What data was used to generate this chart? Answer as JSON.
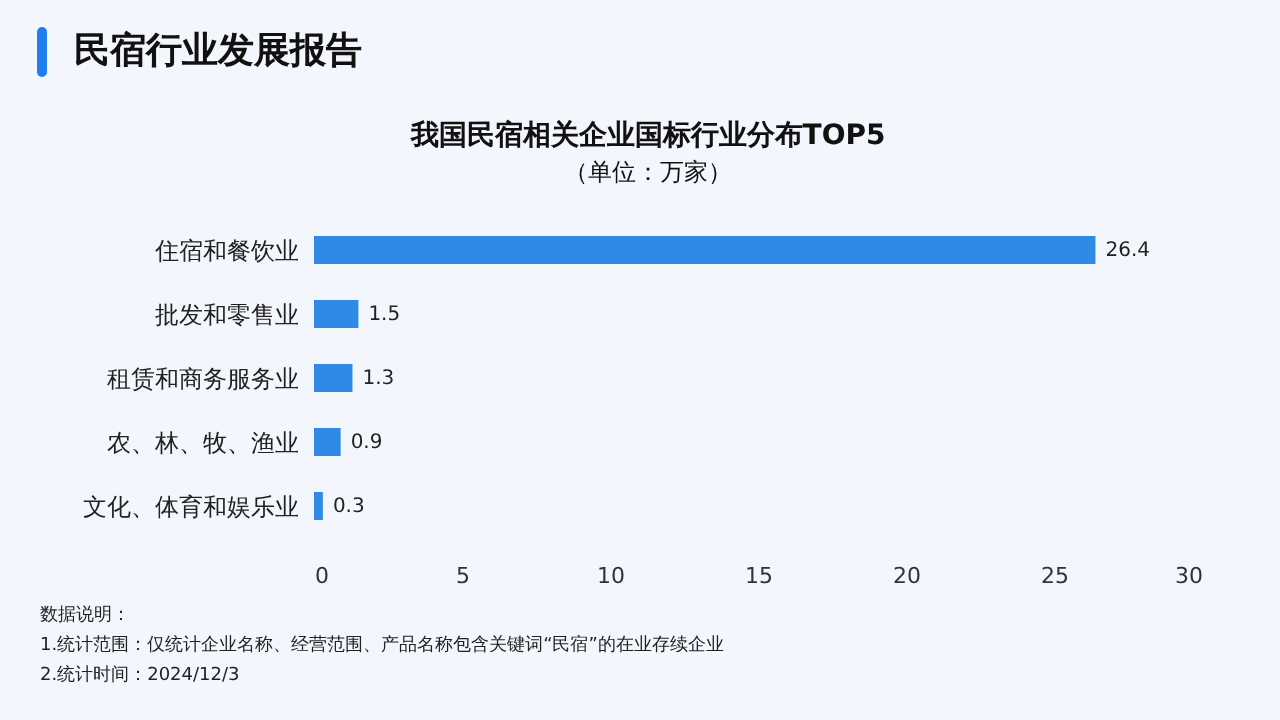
{
  "chart_data": {
    "type": "bar",
    "orientation": "horizontal",
    "title": "我国民宿相关企业国标行业分布TOP5",
    "subtitle": "（单位：万家）",
    "categories": [
      "住宿和餐饮业",
      "批发和零售业",
      "租赁和商务服务业",
      "农、林、牧、渔业",
      "文化、体育和娱乐业"
    ],
    "values": [
      26.4,
      1.5,
      1.3,
      0.9,
      0.3
    ],
    "color": "#2f8ae5",
    "data_labels": true,
    "xlim": [
      0,
      30
    ],
    "xticks": [
      0,
      5,
      10,
      15,
      20,
      25,
      30
    ],
    "grid": false,
    "annotations": [
      "民宿行业发展报告",
      "数据说明：",
      "1.统计范围：仅统计企业名称、经营范围、产品名称包含关键词“民宿”的在业存续企业",
      "2.统计时间：2024/12/3"
    ]
  }
}
